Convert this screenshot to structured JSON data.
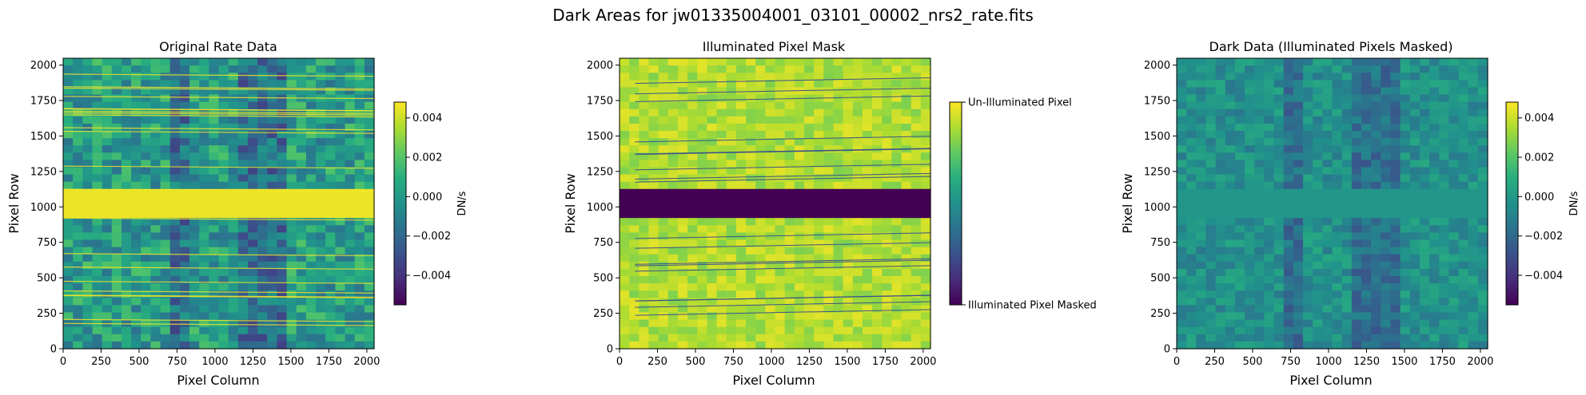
{
  "figure": {
    "title": "Dark Areas for jw01335004001_03101_00002_nrs2_rate.fits"
  },
  "chart_data": [
    {
      "type": "heatmap",
      "title": "Original Rate Data",
      "xlabel": "Pixel Column",
      "ylabel": "Pixel Row",
      "xlim": [
        0,
        2048
      ],
      "ylim": [
        0,
        2048
      ],
      "xticks": [
        0,
        250,
        500,
        750,
        1000,
        1250,
        1500,
        1750,
        2000
      ],
      "yticks": [
        0,
        250,
        500,
        750,
        1000,
        1250,
        1500,
        1750,
        2000
      ],
      "colormap": "viridis",
      "colorbar": {
        "label": "DN/s",
        "range": [
          -0.0055,
          0.0048
        ],
        "ticks": [
          -0.004,
          -0.002,
          0.0,
          0.002,
          0.004
        ],
        "tick_labels": [
          "−0.004",
          "−0.002",
          "0.000",
          "0.002",
          "0.004"
        ]
      },
      "features": {
        "bright_band_rows": [
          925,
          1115
        ],
        "dark_columns": [
          [
            700,
            800
          ],
          [
            1150,
            1500
          ]
        ],
        "trace_streaks": "many near-horizontal bright streaks across full width"
      }
    },
    {
      "type": "heatmap",
      "title": "Illuminated Pixel Mask",
      "xlabel": "Pixel Column",
      "ylabel": "Pixel Row",
      "xlim": [
        0,
        2048
      ],
      "ylim": [
        0,
        2048
      ],
      "xticks": [
        0,
        250,
        500,
        750,
        1000,
        1250,
        1500,
        1750,
        2000
      ],
      "yticks": [
        0,
        250,
        500,
        750,
        1000,
        1250,
        1500,
        1750,
        2000
      ],
      "colormap": "viridis",
      "colorbar": {
        "label": "",
        "range": [
          0,
          1
        ],
        "ticks": [
          0,
          1
        ],
        "tick_labels": [
          "Illuminated Pixel Masked",
          "Un-Illuminated Pixel"
        ]
      },
      "features": {
        "masked_band_rows": [
          925,
          1115
        ],
        "masked_lines": "thin diagonal masked traces across full width"
      }
    },
    {
      "type": "heatmap",
      "title": "Dark Data (Illuminated Pixels Masked)",
      "xlabel": "Pixel Column",
      "ylabel": "Pixel Row",
      "xlim": [
        0,
        2048
      ],
      "ylim": [
        0,
        2048
      ],
      "xticks": [
        0,
        250,
        500,
        750,
        1000,
        1250,
        1500,
        1750,
        2000
      ],
      "yticks": [
        0,
        250,
        500,
        750,
        1000,
        1250,
        1500,
        1750,
        2000
      ],
      "colormap": "viridis",
      "colorbar": {
        "label": "DN/s",
        "range": [
          -0.0055,
          0.0048
        ],
        "ticks": [
          -0.004,
          -0.002,
          0.0,
          0.002,
          0.004
        ],
        "tick_labels": [
          "−0.004",
          "−0.002",
          "0.000",
          "0.002",
          "0.004"
        ]
      },
      "features": {
        "flat_band_rows": [
          925,
          1115
        ],
        "dark_columns": [
          [
            700,
            800
          ],
          [
            1150,
            1500
          ]
        ]
      }
    }
  ]
}
